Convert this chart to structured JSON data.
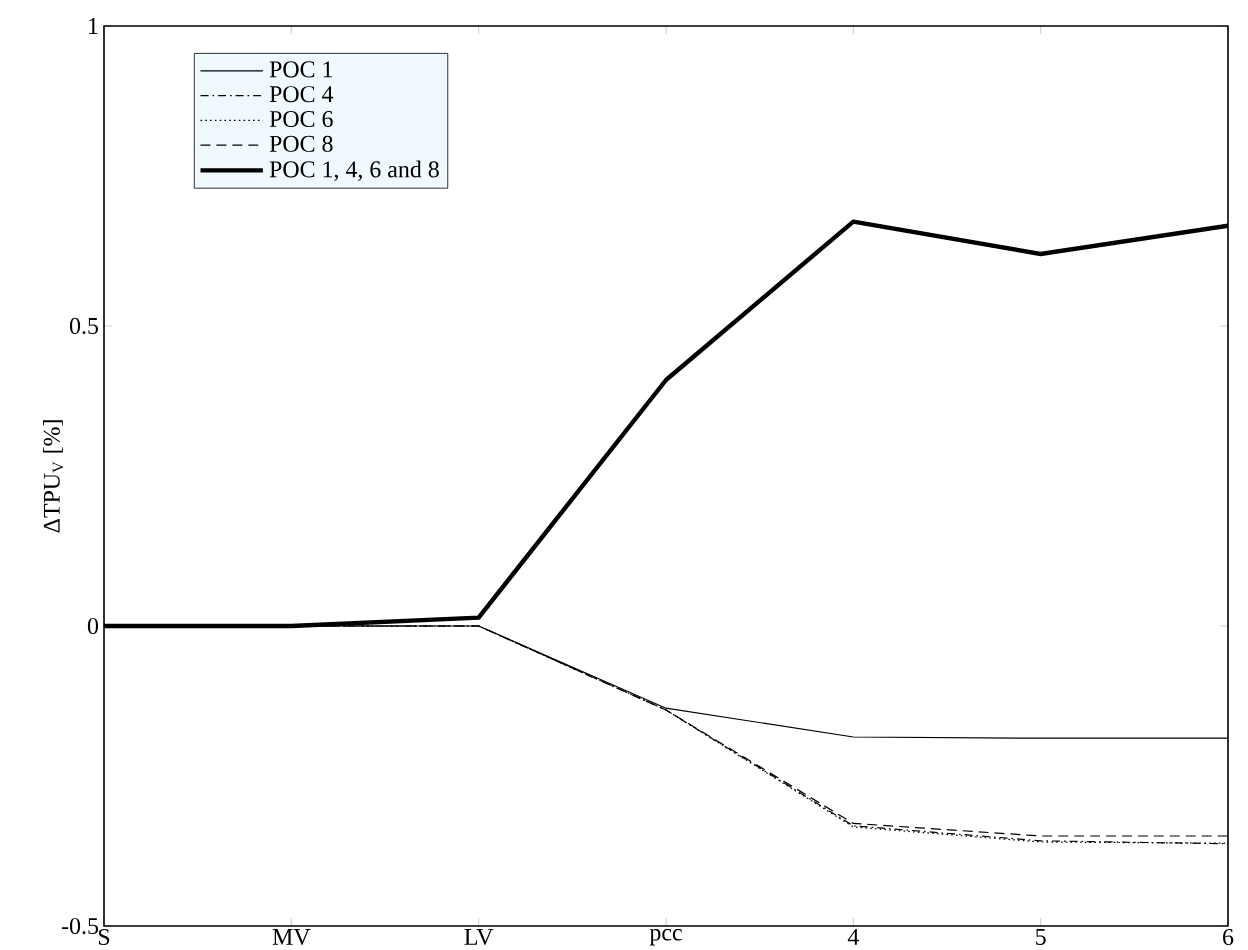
{
  "chart_data": {
    "type": "line",
    "ylabel": "ΔTPU$_{V}$ [%]",
    "categories": [
      "S",
      "MV",
      "LV",
      "pcc",
      "4",
      "5",
      "6"
    ],
    "ylim": [
      -0.5,
      1
    ],
    "yticks": [
      -0.5,
      0,
      0.5,
      1
    ],
    "grid": false,
    "legend": "top left",
    "marker": "none",
    "series": [
      {
        "name": "POC 1",
        "color": "#000000",
        "line_style": "solid",
        "values": [
          0,
          0,
          0,
          -0.137,
          -0.185,
          -0.187,
          -0.187
        ]
      },
      {
        "name": "POC 4",
        "color": "#000000",
        "line_style": "dashdot",
        "values": [
          0,
          0,
          0,
          -0.14,
          -0.333,
          -0.358,
          -0.363
        ]
      },
      {
        "name": "POC 6",
        "color": "#000000",
        "line_style": "dotted",
        "values": [
          0,
          0,
          0,
          -0.14,
          -0.335,
          -0.36,
          -0.362
        ]
      },
      {
        "name": "POC 8",
        "color": "#000000",
        "line_style": "dashed",
        "values": [
          0,
          0,
          0,
          -0.14,
          -0.329,
          -0.35,
          -0.35
        ]
      },
      {
        "name": "POC 1, 4, 6 and 8",
        "color": "#000000",
        "line_style": "solid",
        "values": [
          0,
          0,
          0.014,
          0.41,
          0.674,
          0.62,
          0.667
        ]
      }
    ]
  }
}
